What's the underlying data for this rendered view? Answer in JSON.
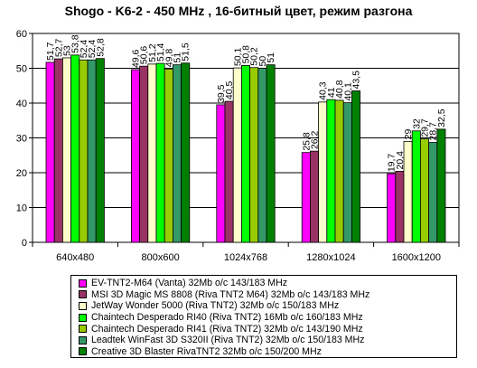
{
  "chart_data": {
    "type": "bar",
    "title": "Shogo - K6-2 - 450 MHz ,  16-битный цвет, режим разгона",
    "categories": [
      "640x480",
      "800x600",
      "1024x768",
      "1280x1024",
      "1600x1200"
    ],
    "ylim": [
      0,
      60
    ],
    "yticks": [
      0,
      10,
      20,
      30,
      40,
      50,
      60
    ],
    "grid": true,
    "legend_position": "bottom",
    "series": [
      {
        "name": "EV-TNT2-M64 (Vanta) 32Mb o/c 143/183 MHz",
        "color": "#ff00ff",
        "values": [
          51.7,
          49.6,
          39.5,
          25.8,
          19.7
        ],
        "labels": [
          "51,7",
          "49,6",
          "39,5",
          "25,8",
          "19,7"
        ]
      },
      {
        "name": "MSI 3D Magic MS 8808 (Riva TNT2 M64) 32Mb o/c 143/183 MHz",
        "color": "#993366",
        "values": [
          52.7,
          50.6,
          40.5,
          26.2,
          20.4
        ],
        "labels": [
          "52,7",
          "50,6",
          "40,5",
          "26,2",
          "20,4"
        ]
      },
      {
        "name": "JetWay Wonder 5000 (Riva TNT2) 32Mb o/c 150/183 MHz",
        "color": "#ffffcc",
        "values": [
          53,
          51.2,
          50.1,
          40.3,
          29
        ],
        "labels": [
          "53",
          "51,2",
          "50,1",
          "40,3",
          "29"
        ]
      },
      {
        "name": "Chaintech Desperado RI40 (Riva TNT2) 16Mb o/c 160/183 MHz",
        "color": "#00ff00",
        "values": [
          53.8,
          51.4,
          50.8,
          41,
          32
        ],
        "labels": [
          "53,8",
          "51,4",
          "50,8",
          "41",
          "32"
        ]
      },
      {
        "name": "Chaintech Desperado RI41 (Riva TNT2) 32Mb o/c 143/190 MHz",
        "color": "#99cc00",
        "values": [
          52.4,
          49.8,
          50.2,
          40.8,
          29.7
        ],
        "labels": [
          "52,4",
          "49,8",
          "50,2",
          "40,8",
          "29,7"
        ]
      },
      {
        "name": "Leadtek WinFast 3D S320II (Riva TNT2) 32Mb o/c 150/183 MHz",
        "color": "#339966",
        "values": [
          52.4,
          51,
          50,
          40.1,
          28.7
        ],
        "labels": [
          "52,4",
          "51",
          "50",
          "40,1",
          "28,7"
        ]
      },
      {
        "name": "Creative 3D Blaster RivaTNT2 32Mb o/c 150/200 MHz",
        "color": "#008000",
        "values": [
          52.8,
          51.5,
          51,
          43.5,
          32.5
        ],
        "labels": [
          "52,8",
          "51,5",
          "51",
          "43,5",
          "32,5"
        ]
      }
    ]
  }
}
